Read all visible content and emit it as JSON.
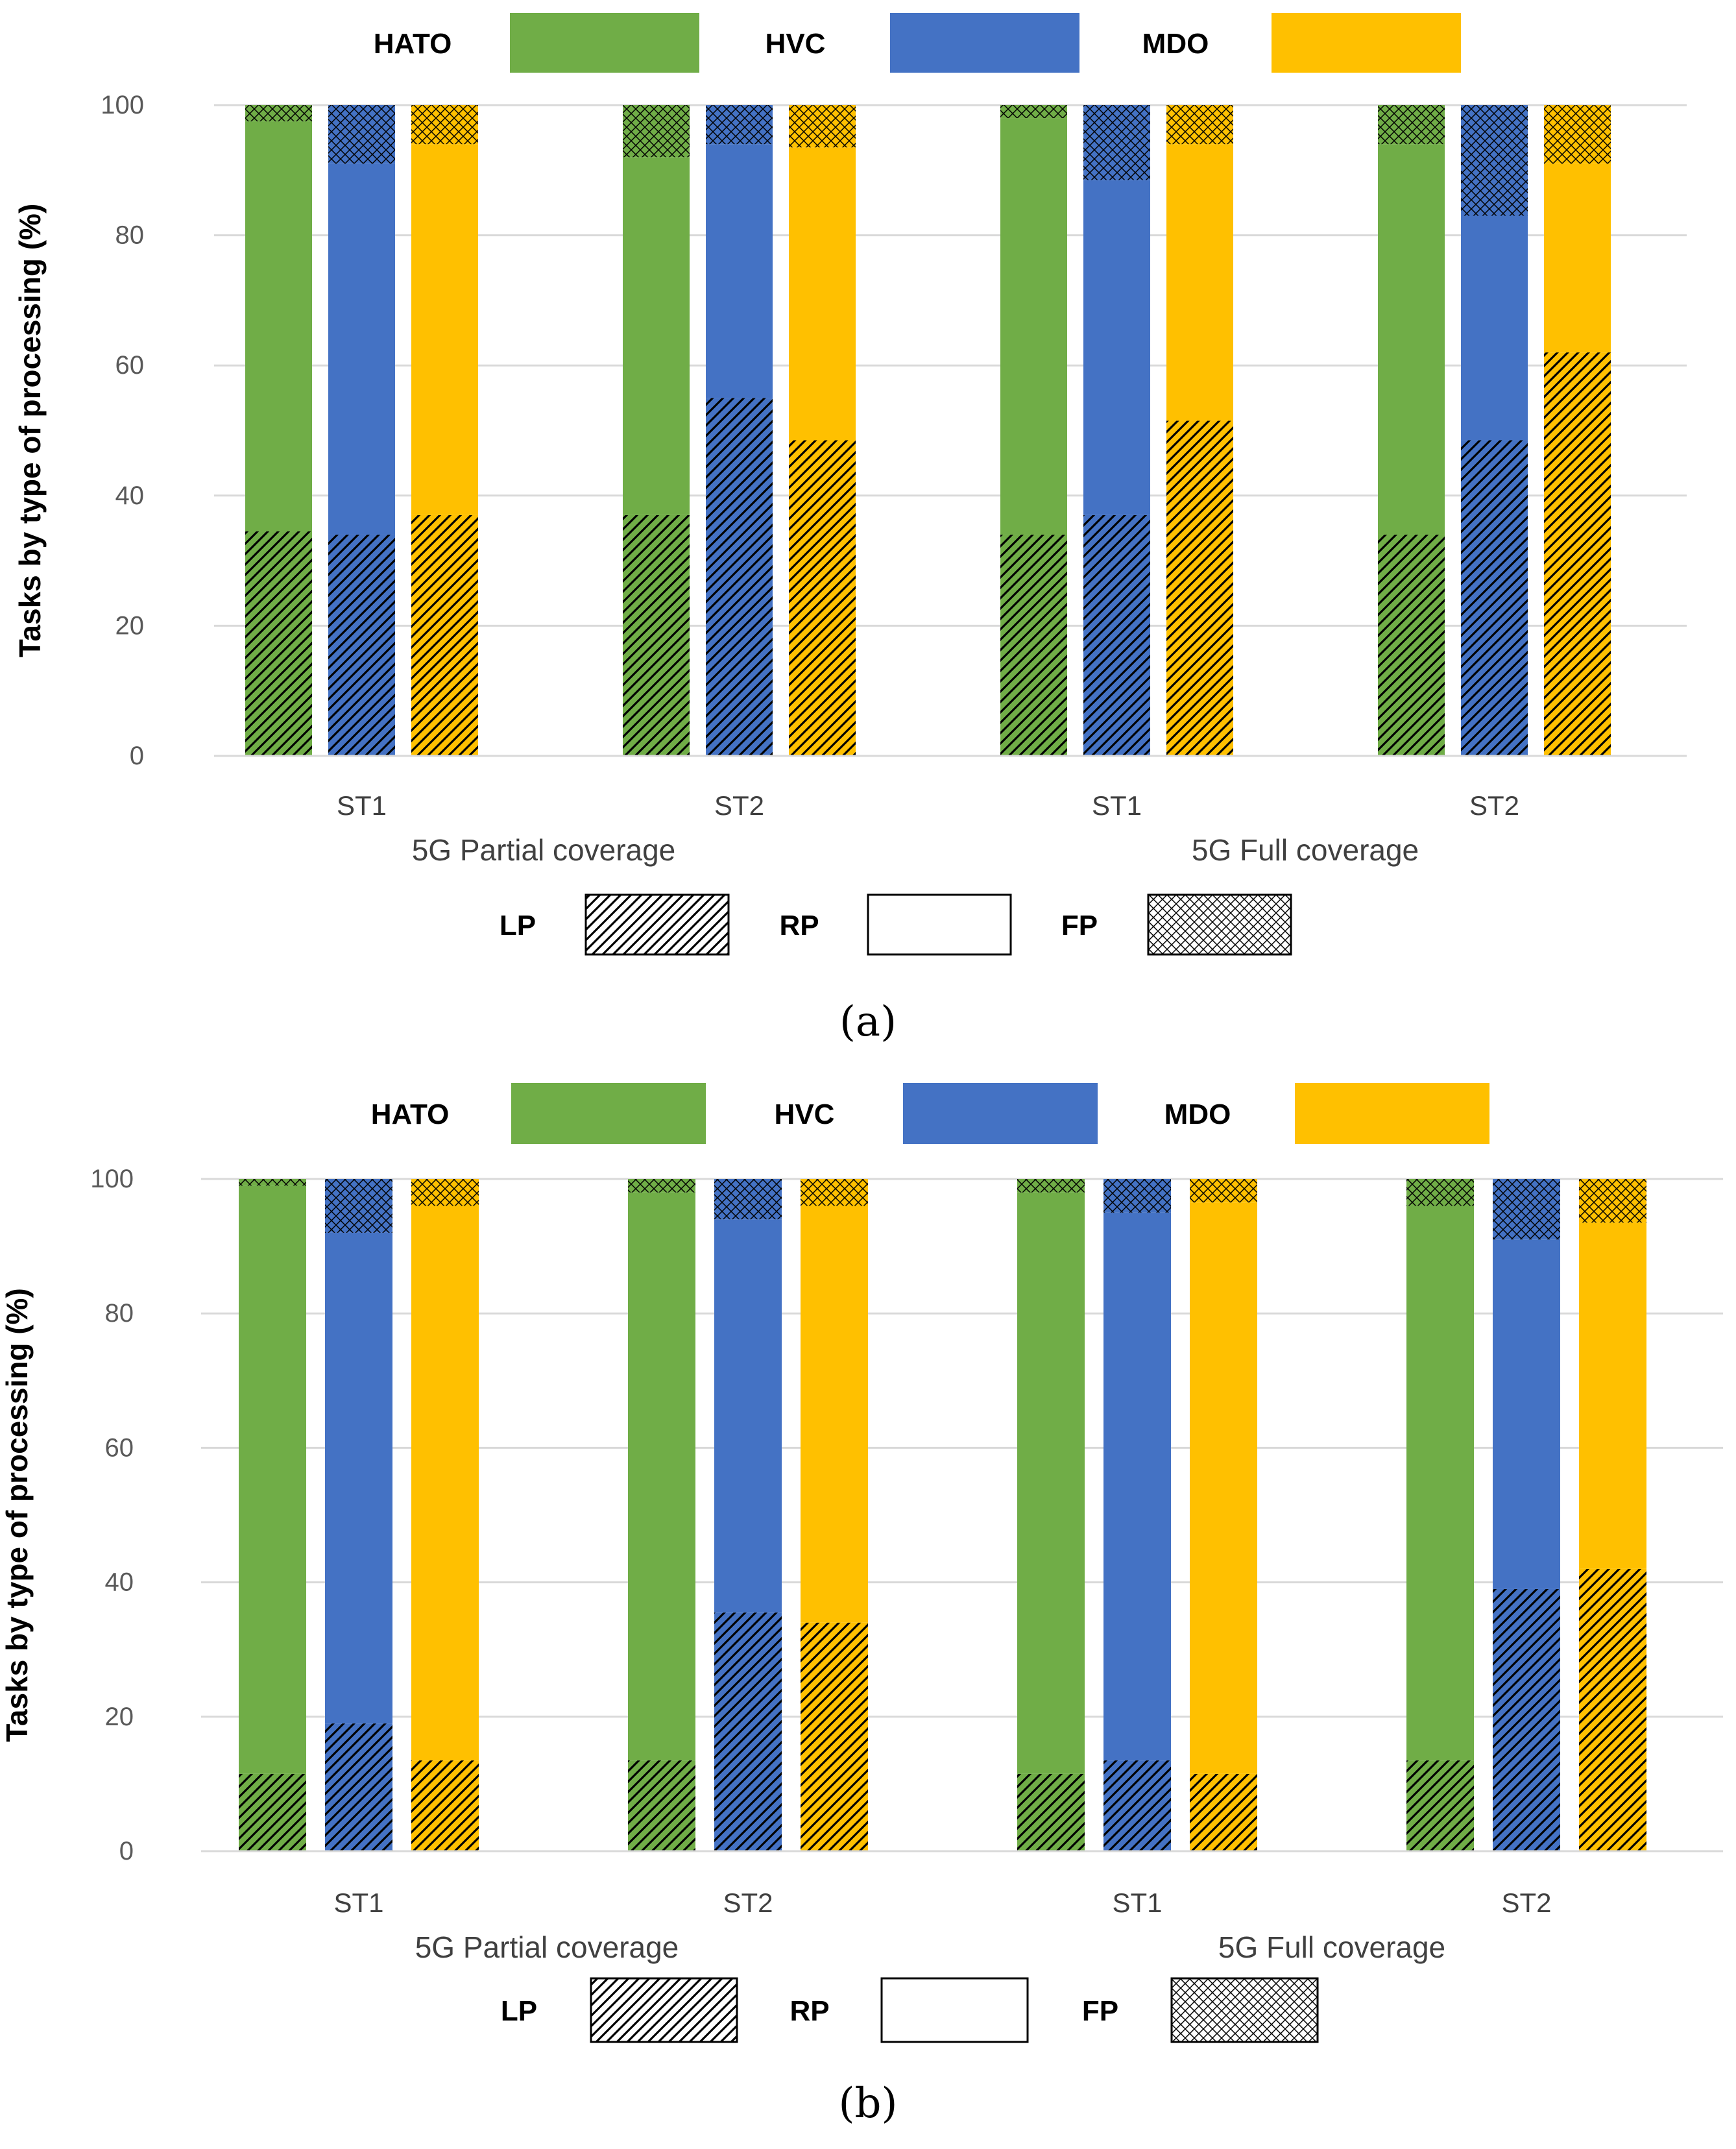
{
  "charts": [
    {
      "caption": "(a)",
      "chart_data": {
        "type": "bar",
        "stacked": true,
        "ylabel": "Tasks by type of processing (%)",
        "ylim": [
          0,
          100
        ],
        "yticks": [
          0,
          20,
          40,
          60,
          80,
          100
        ],
        "groups": [
          {
            "category": "ST1",
            "coverage": "5G Partial coverage"
          },
          {
            "category": "ST2",
            "coverage": "5G Partial coverage"
          },
          {
            "category": "ST1",
            "coverage": "5G Full coverage"
          },
          {
            "category": "ST2",
            "coverage": "5G Full coverage"
          }
        ],
        "group_labels": [
          "5G Partial coverage",
          "5G Full coverage"
        ],
        "series": [
          {
            "name": "HATO",
            "color": "#70AD47",
            "LP": [
              34.5,
              37,
              34,
              34
            ],
            "RP": [
              63,
              55,
              64,
              60
            ],
            "FP": [
              2.5,
              8,
              2,
              6
            ]
          },
          {
            "name": "HVC",
            "color": "#4472C4",
            "LP": [
              34,
              55,
              37,
              48.5
            ],
            "RP": [
              57,
              39,
              51.5,
              34.5
            ],
            "FP": [
              9,
              6,
              11.5,
              17
            ]
          },
          {
            "name": "MDO",
            "color": "#FFC000",
            "LP": [
              37,
              48.5,
              51.5,
              62
            ],
            "RP": [
              57,
              45,
              42.5,
              29
            ],
            "FP": [
              6,
              6.5,
              6,
              9
            ]
          }
        ],
        "processing_types": [
          "LP",
          "RP",
          "FP"
        ]
      }
    },
    {
      "caption": "(b)",
      "chart_data": {
        "type": "bar",
        "stacked": true,
        "ylabel": "Tasks by type of processing (%)",
        "ylim": [
          0,
          100
        ],
        "yticks": [
          0,
          20,
          40,
          60,
          80,
          100
        ],
        "groups": [
          {
            "category": "ST1",
            "coverage": "5G Partial coverage"
          },
          {
            "category": "ST2",
            "coverage": "5G Partial coverage"
          },
          {
            "category": "ST1",
            "coverage": "5G Full coverage"
          },
          {
            "category": "ST2",
            "coverage": "5G Full coverage"
          }
        ],
        "group_labels": [
          "5G Partial coverage",
          "5G Full coverage"
        ],
        "series": [
          {
            "name": "HATO",
            "color": "#70AD47",
            "LP": [
              11.5,
              13.5,
              11.5,
              13.5
            ],
            "RP": [
              87.5,
              84.5,
              86.5,
              82.5
            ],
            "FP": [
              1,
              2,
              2,
              4
            ]
          },
          {
            "name": "HVC",
            "color": "#4472C4",
            "LP": [
              19,
              35.5,
              13.5,
              39
            ],
            "RP": [
              73,
              58.5,
              81.5,
              52
            ],
            "FP": [
              8,
              6,
              5,
              9
            ]
          },
          {
            "name": "MDO",
            "color": "#FFC000",
            "LP": [
              13.5,
              34,
              11.5,
              42
            ],
            "RP": [
              82.5,
              62,
              85,
              51.5
            ],
            "FP": [
              4,
              4,
              3.5,
              6.5
            ]
          }
        ],
        "processing_types": [
          "LP",
          "RP",
          "FP"
        ]
      }
    }
  ]
}
